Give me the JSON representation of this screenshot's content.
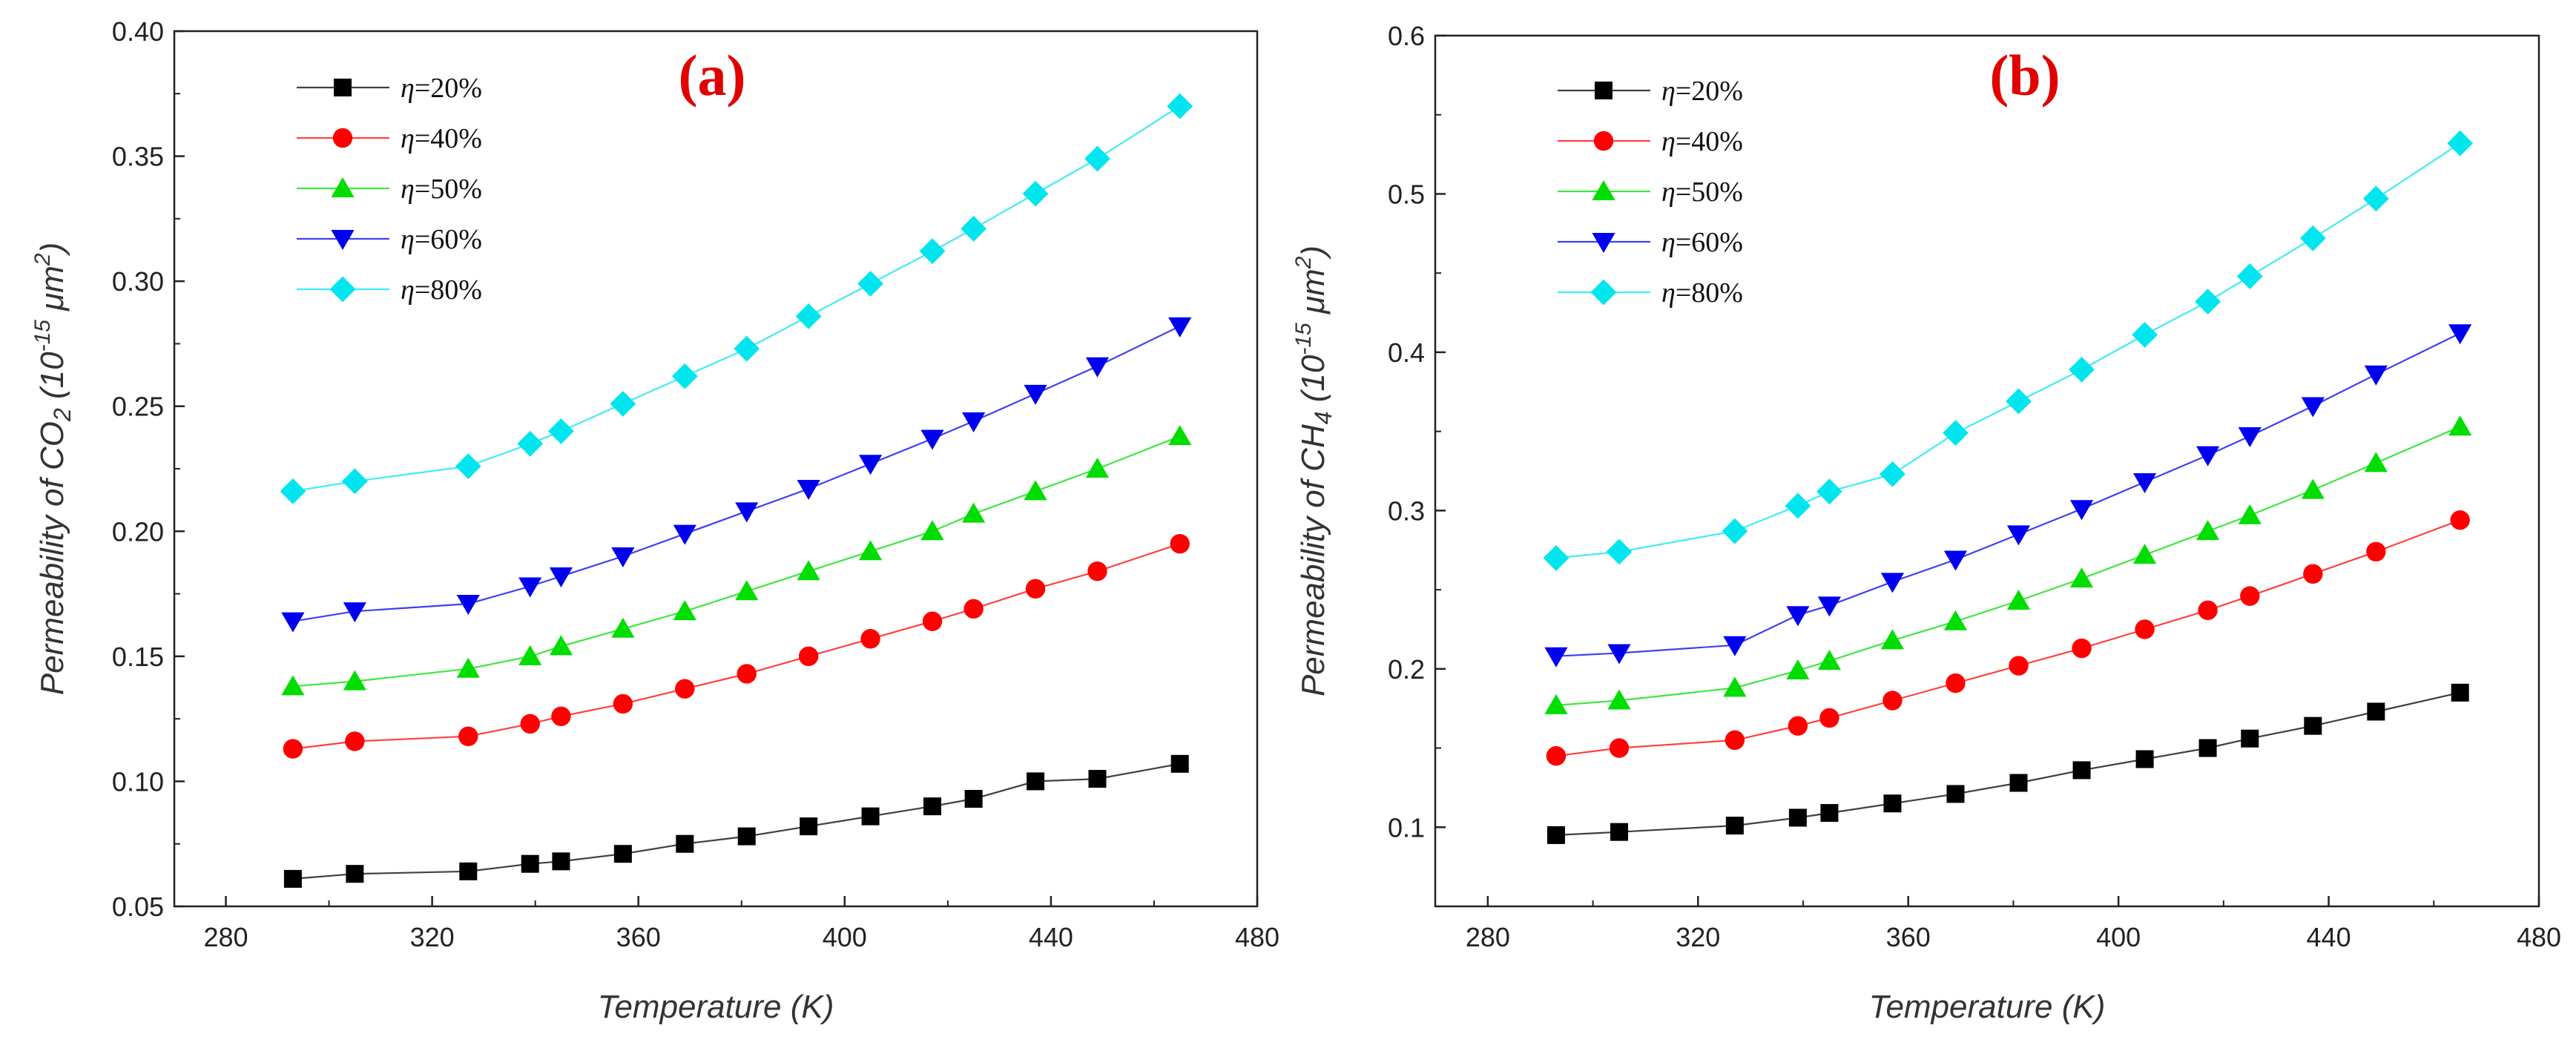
{
  "chart_data": [
    {
      "type": "line",
      "panel_label": "(a)",
      "xlabel": "Temperature (K)",
      "ylabel": {
        "prefix": "Permeability of CO",
        "sub": "2",
        "unit_open": " (10",
        "exp": "-15",
        "unit_mid": " μm",
        "exp2": "2",
        "unit_close": ")"
      },
      "xlim": [
        270,
        480
      ],
      "ylim": [
        0.05,
        0.4
      ],
      "xticks": [
        "280",
        "320",
        "360",
        "400",
        "440",
        "480"
      ],
      "xtick_values": [
        280,
        320,
        360,
        400,
        440,
        480
      ],
      "yticks": [
        "0.05",
        "0.10",
        "0.15",
        "0.20",
        "0.25",
        "0.30",
        "0.35",
        "0.40"
      ],
      "ytick_values": [
        0.05,
        0.1,
        0.15,
        0.2,
        0.25,
        0.3,
        0.35,
        0.4
      ],
      "legend_position": "top-left",
      "x": [
        293,
        305,
        327,
        339,
        345,
        357,
        369,
        381,
        393,
        405,
        417,
        425,
        437,
        449,
        465
      ],
      "series": [
        {
          "name": "η=20%",
          "eta": "η",
          "label": "=20%",
          "color": "#000000",
          "marker": "square",
          "values": [
            0.061,
            0.063,
            0.064,
            0.067,
            0.068,
            0.071,
            0.075,
            0.078,
            0.082,
            0.086,
            0.09,
            0.093,
            0.1,
            0.101,
            0.107
          ]
        },
        {
          "name": "η=40%",
          "eta": "η",
          "label": "=40%",
          "color": "#ff0000",
          "marker": "circle",
          "values": [
            0.113,
            0.116,
            0.118,
            0.123,
            0.126,
            0.131,
            0.137,
            0.143,
            0.15,
            0.157,
            0.164,
            0.169,
            0.177,
            0.184,
            0.195
          ]
        },
        {
          "name": "η=50%",
          "eta": "η",
          "label": "=50%",
          "color": "#00dd00",
          "marker": "triangle-up",
          "values": [
            0.138,
            0.14,
            0.145,
            0.15,
            0.154,
            0.161,
            0.168,
            0.176,
            0.184,
            0.192,
            0.2,
            0.207,
            0.216,
            0.225,
            0.238
          ]
        },
        {
          "name": "η=60%",
          "eta": "η",
          "label": "=60%",
          "color": "#0000ee",
          "marker": "triangle-down",
          "values": [
            0.164,
            0.168,
            0.171,
            0.178,
            0.182,
            0.19,
            0.199,
            0.208,
            0.217,
            0.227,
            0.237,
            0.244,
            0.255,
            0.266,
            0.282
          ]
        },
        {
          "name": "η=80%",
          "eta": "η",
          "label": "=80%",
          "color": "#00e5ee",
          "marker": "diamond",
          "values": [
            0.216,
            0.22,
            0.226,
            0.235,
            0.24,
            0.251,
            0.262,
            0.273,
            0.286,
            0.299,
            0.312,
            0.321,
            0.335,
            0.349,
            0.37
          ]
        }
      ]
    },
    {
      "type": "line",
      "panel_label": "(b)",
      "xlabel": "Temperature (K)",
      "ylabel": {
        "prefix": "Permeability of CH",
        "sub": "4",
        "unit_open": " (10",
        "exp": "-15",
        "unit_mid": " μm",
        "exp2": "2",
        "unit_close": ")"
      },
      "xlim": [
        270,
        480
      ],
      "ylim": [
        0.05,
        0.6
      ],
      "xticks": [
        "280",
        "320",
        "360",
        "400",
        "440",
        "480"
      ],
      "xtick_values": [
        280,
        320,
        360,
        400,
        440,
        480
      ],
      "yticks": [
        "0.1",
        "0.2",
        "0.3",
        "0.4",
        "0.5",
        "0.6"
      ],
      "ytick_values": [
        0.1,
        0.2,
        0.3,
        0.4,
        0.5,
        0.6
      ],
      "legend_position": "top-left",
      "x": [
        293,
        305,
        327,
        339,
        345,
        357,
        369,
        381,
        393,
        405,
        417,
        425,
        437,
        449,
        465
      ],
      "series": [
        {
          "name": "η=20%",
          "eta": "η",
          "label": "=20%",
          "color": "#000000",
          "marker": "square",
          "values": [
            0.095,
            0.097,
            0.101,
            0.106,
            0.109,
            0.115,
            0.121,
            0.128,
            0.136,
            0.143,
            0.15,
            0.156,
            0.164,
            0.173,
            0.185
          ]
        },
        {
          "name": "η=40%",
          "eta": "η",
          "label": "=40%",
          "color": "#ff0000",
          "marker": "circle",
          "values": [
            0.145,
            0.15,
            0.155,
            0.164,
            0.169,
            0.18,
            0.191,
            0.202,
            0.213,
            0.225,
            0.237,
            0.246,
            0.26,
            0.274,
            0.294
          ]
        },
        {
          "name": "η=50%",
          "eta": "η",
          "label": "=50%",
          "color": "#00dd00",
          "marker": "triangle-up",
          "values": [
            0.177,
            0.18,
            0.188,
            0.199,
            0.205,
            0.218,
            0.23,
            0.243,
            0.257,
            0.272,
            0.287,
            0.297,
            0.313,
            0.33,
            0.353
          ]
        },
        {
          "name": "η=60%",
          "eta": "η",
          "label": "=60%",
          "color": "#0000ee",
          "marker": "triangle-down",
          "values": [
            0.208,
            0.21,
            0.215,
            0.234,
            0.24,
            0.255,
            0.269,
            0.285,
            0.301,
            0.318,
            0.335,
            0.347,
            0.366,
            0.386,
            0.412
          ]
        },
        {
          "name": "η=80%",
          "eta": "η",
          "label": "=80%",
          "color": "#00e5ee",
          "marker": "diamond",
          "values": [
            0.27,
            0.274,
            0.287,
            0.303,
            0.312,
            0.323,
            0.349,
            0.369,
            0.389,
            0.411,
            0.432,
            0.448,
            0.472,
            0.497,
            0.532
          ]
        }
      ]
    }
  ]
}
